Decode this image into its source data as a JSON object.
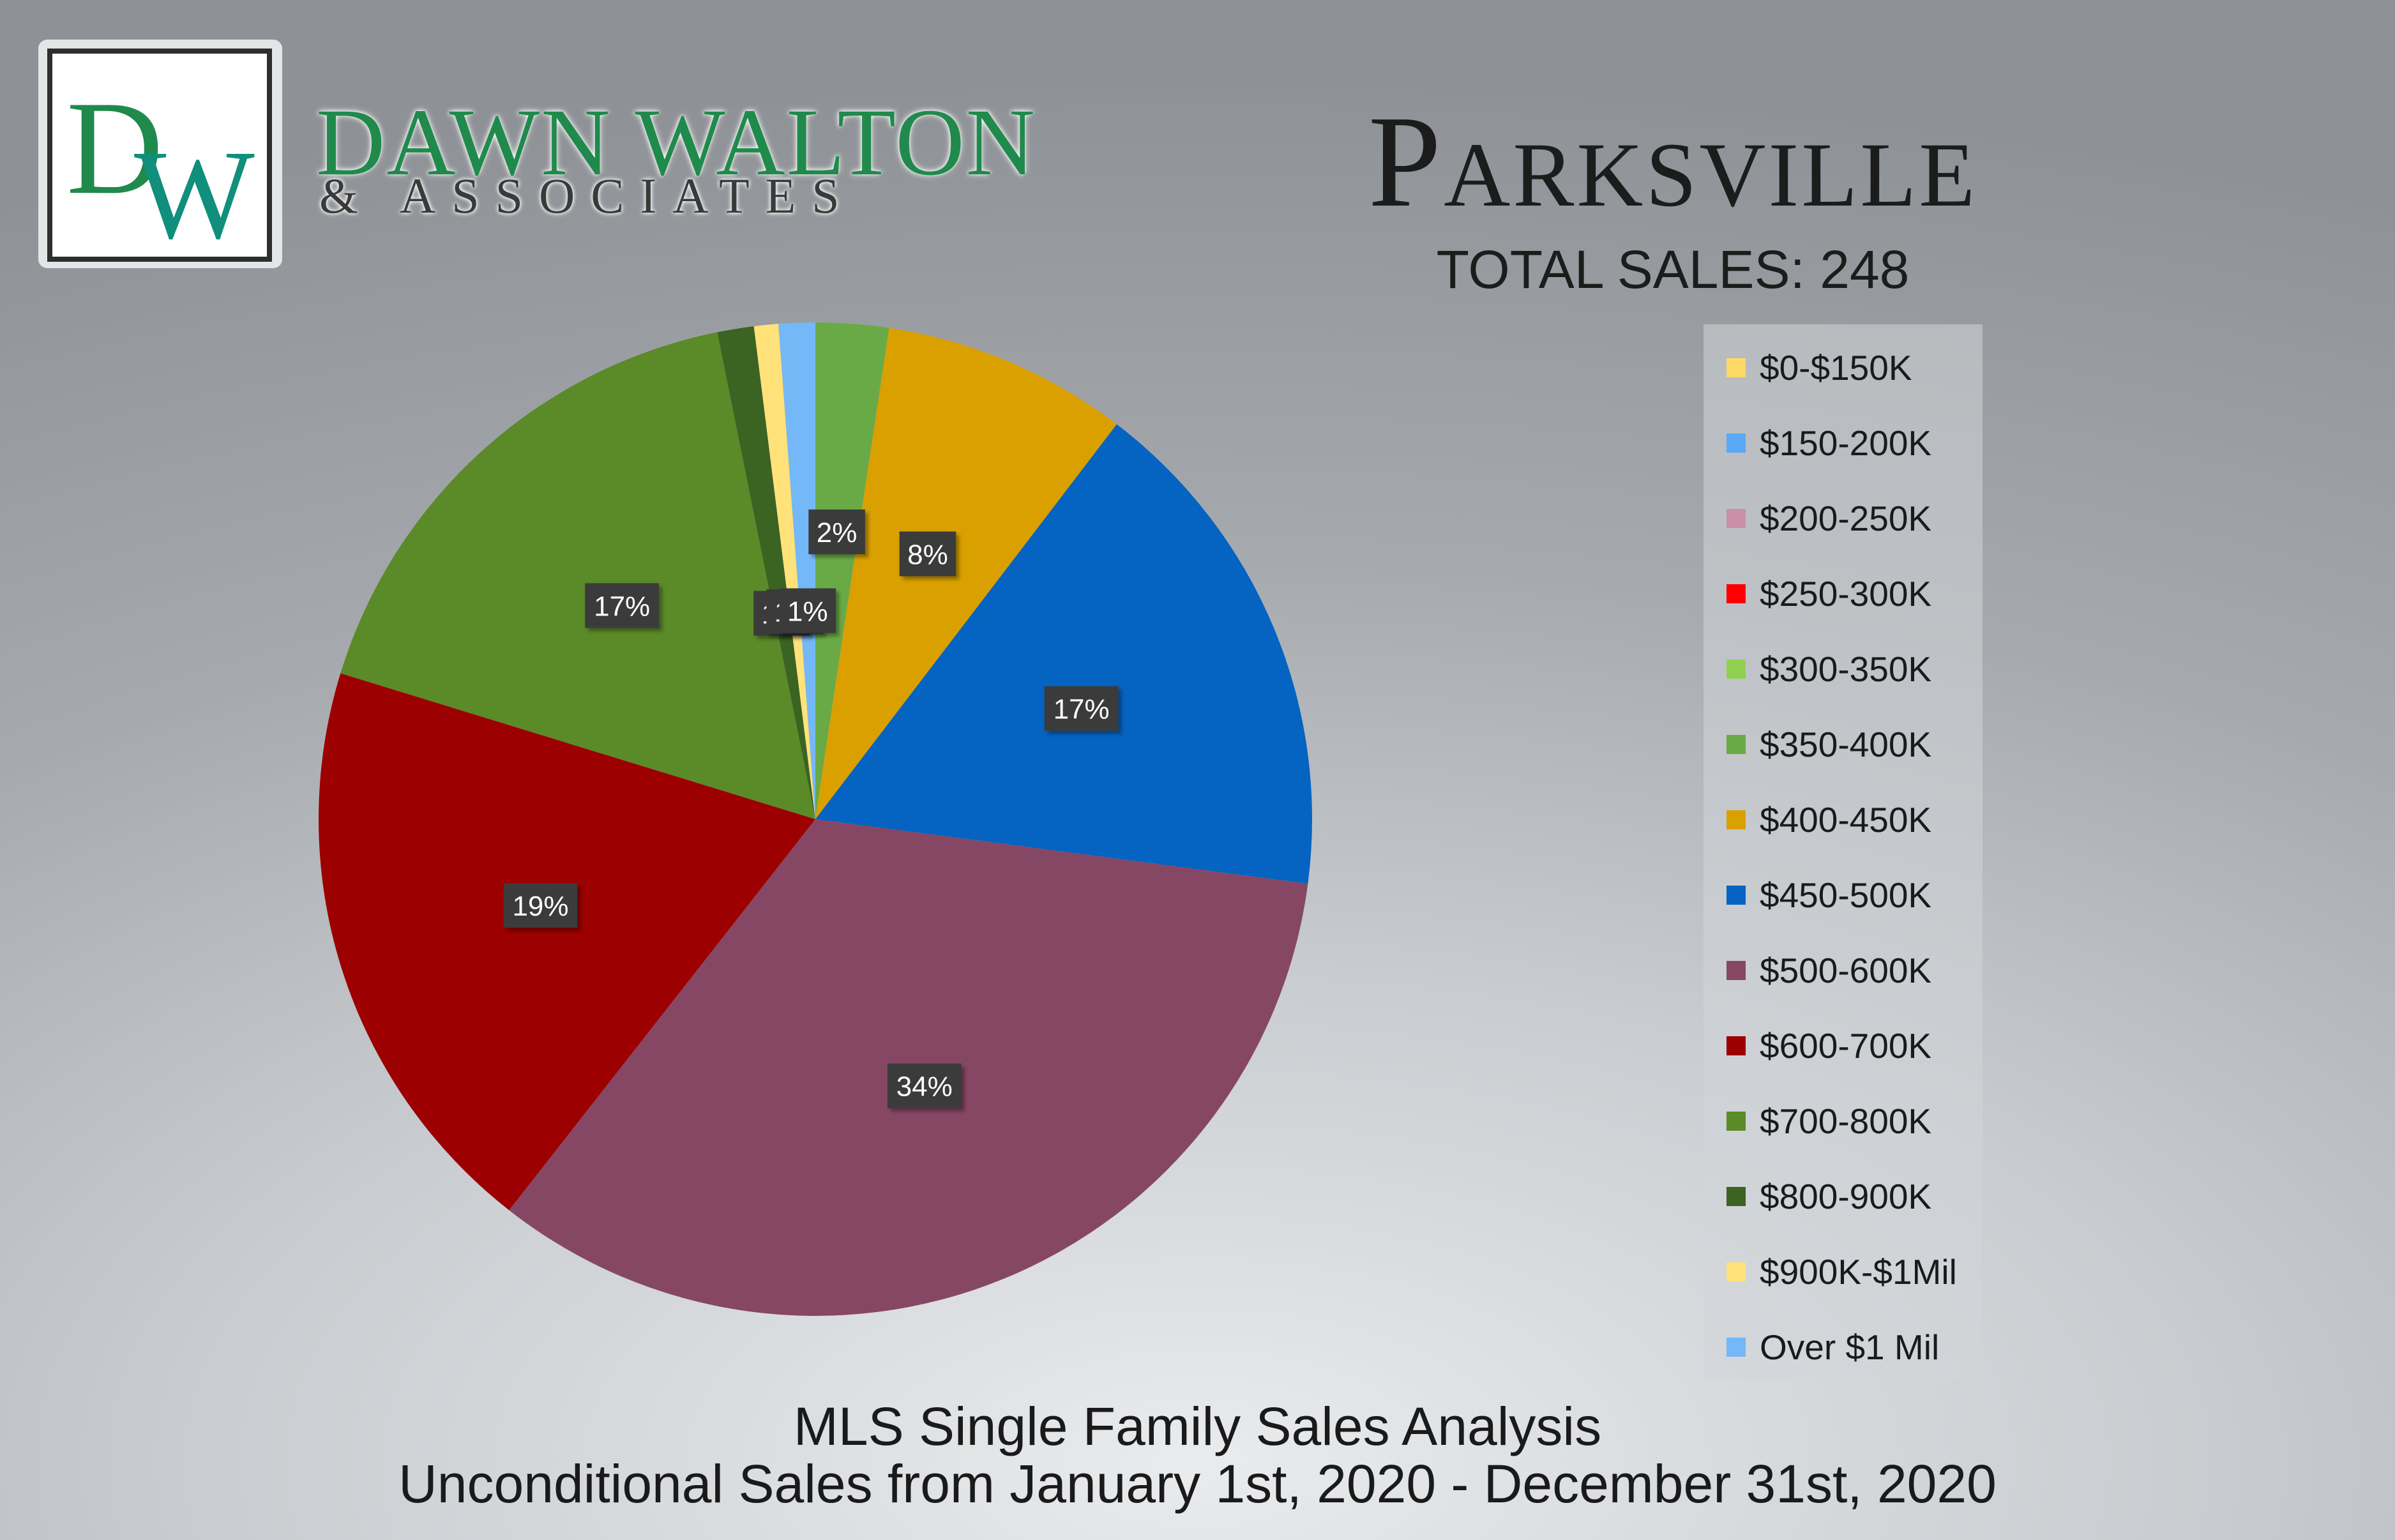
{
  "brand": {
    "monogram": "DW",
    "name": "DAWN WALTON",
    "subtitle": "& ASSOCIATES",
    "colors": {
      "green": "#1f8a4c",
      "teal": "#0f8f7c",
      "dark": "#2e2e2e"
    }
  },
  "header": {
    "title": "Parksville",
    "total_sales": "TOTAL SALES: 248"
  },
  "footer": {
    "line1": "MLS Single Family Sales Analysis",
    "line2": "Unconditional Sales from January 1st, 2020 - December 31st, 2020"
  },
  "chart_data": {
    "type": "pie",
    "legend_position": "right",
    "categories": [
      "$0-$150K",
      "$150-200K",
      "$200-250K",
      "$250-300K",
      "$300-350K",
      "$350-400K",
      "$400-450K",
      "$450-500K",
      "$500-600K",
      "$600-700K",
      "$700-800K",
      "$800-900K",
      "$900K-$1Mil",
      "Over $1 Mil"
    ],
    "values": [
      0,
      0,
      0,
      0,
      0,
      2.4,
      8.1,
      16.9,
      33.9,
      19.4,
      17.3,
      1.2,
      0.8,
      1.2
    ],
    "data_labels": [
      "",
      "",
      "",
      "",
      "",
      "2%",
      "8%",
      "17%",
      "34%",
      "19%",
      "17%",
      "1%",
      "1%",
      "1%"
    ],
    "colors": [
      "#ffd966",
      "#5aa9f5",
      "#cc8fa8",
      "#ff0000",
      "#92d050",
      "#6aaa46",
      "#d9a000",
      "#0563c1",
      "#864765",
      "#9c0000",
      "#5b8a28",
      "#3b6322",
      "#ffe27a",
      "#75b8f7"
    ]
  }
}
